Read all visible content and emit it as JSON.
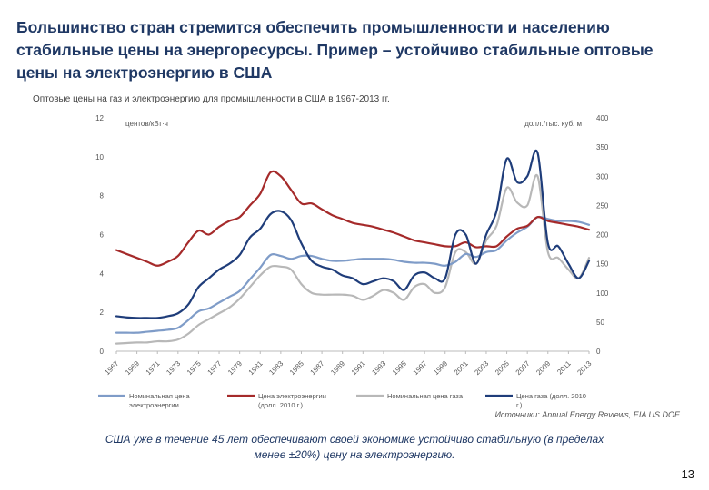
{
  "headline": "Большинство стран стремится обеспечить промышленности и населению стабильные цены на энергоресурсы. Пример – устойчиво стабильные оптовые цены на электроэнергию в США",
  "footer": {
    "source": "Источники: Annual Energy Reviews, EIA US DOE",
    "conclusion": "США уже в течение 45 лет обеспечивают своей экономике устойчиво стабильную (в пределах менее ±20%) цену на электроэнергию.",
    "page_number": "13"
  },
  "colors": {
    "nominal_power": "#7f9cc8",
    "real_power": "#a52a2a",
    "nominal_gas": "#b8b8b8",
    "real_gas": "#1f3d7a"
  },
  "chart_data": {
    "type": "line",
    "title": "Оптовые цены на газ и электроэнергию для промышленности в США в 1967-2013 гг.",
    "ylabel_left": "центов/кВт·ч",
    "ylabel_right": "долл./тыс. куб. м",
    "ylim_left": [
      0,
      12
    ],
    "ylim_right": [
      0,
      400
    ],
    "yticks_left": [
      "0",
      "2",
      "4",
      "6",
      "8",
      "10",
      "12"
    ],
    "yticks_right": [
      "0",
      "50",
      "100",
      "150",
      "200",
      "250",
      "300",
      "350",
      "400"
    ],
    "x": [
      1967,
      1968,
      1969,
      1970,
      1971,
      1972,
      1973,
      1974,
      1975,
      1976,
      1977,
      1978,
      1979,
      1980,
      1981,
      1982,
      1983,
      1984,
      1985,
      1986,
      1987,
      1988,
      1989,
      1990,
      1991,
      1992,
      1993,
      1994,
      1995,
      1996,
      1997,
      1998,
      1999,
      2000,
      2001,
      2002,
      2003,
      2004,
      2005,
      2006,
      2007,
      2008,
      2009,
      2010,
      2011,
      2012,
      2013
    ],
    "xticks": [
      "1967",
      "1969",
      "1971",
      "1973",
      "1975",
      "1977",
      "1979",
      "1981",
      "1983",
      "1985",
      "1987",
      "1989",
      "1991",
      "1993",
      "1995",
      "1997",
      "1999",
      "2001",
      "2003",
      "2005",
      "2007",
      "2009",
      "2011",
      "2013"
    ],
    "series": [
      {
        "name": "Номинальная цена электроэнергии",
        "axis": "left",
        "values": [
          0.95,
          0.95,
          0.95,
          1.0,
          1.05,
          1.1,
          1.2,
          1.6,
          2.05,
          2.2,
          2.5,
          2.8,
          3.1,
          3.7,
          4.3,
          4.95,
          4.9,
          4.75,
          4.9,
          4.9,
          4.75,
          4.65,
          4.65,
          4.7,
          4.75,
          4.75,
          4.75,
          4.7,
          4.6,
          4.55,
          4.55,
          4.5,
          4.4,
          4.6,
          5.0,
          4.85,
          5.1,
          5.2,
          5.7,
          6.1,
          6.4,
          6.9,
          6.8,
          6.7,
          6.7,
          6.65,
          6.5
        ]
      },
      {
        "name": "Цена электроэнергии (долл. 2010 г.)",
        "axis": "left",
        "values": [
          5.2,
          5.0,
          4.8,
          4.6,
          4.4,
          4.6,
          4.9,
          5.6,
          6.2,
          6.0,
          6.4,
          6.7,
          6.9,
          7.5,
          8.1,
          9.2,
          9.0,
          8.3,
          7.6,
          7.6,
          7.3,
          7.0,
          6.8,
          6.6,
          6.5,
          6.4,
          6.25,
          6.1,
          5.9,
          5.7,
          5.6,
          5.5,
          5.4,
          5.4,
          5.6,
          5.35,
          5.4,
          5.4,
          5.9,
          6.3,
          6.45,
          6.9,
          6.7,
          6.6,
          6.5,
          6.4,
          6.25
        ]
      },
      {
        "name": "Номинальная цена газа",
        "axis": "right",
        "values": [
          13,
          14,
          15,
          15,
          17,
          17,
          20,
          30,
          45,
          55,
          65,
          75,
          90,
          110,
          130,
          145,
          145,
          140,
          115,
          100,
          97,
          97,
          97,
          95,
          88,
          95,
          105,
          100,
          88,
          110,
          115,
          100,
          110,
          170,
          170,
          150,
          190,
          215,
          280,
          255,
          250,
          300,
          170,
          160,
          140,
          125,
          160
        ]
      },
      {
        "name": "Цена газа (долл. 2010 г.)",
        "axis": "right",
        "values": [
          60,
          58,
          57,
          57,
          57,
          60,
          65,
          80,
          110,
          125,
          140,
          150,
          165,
          195,
          210,
          235,
          240,
          225,
          185,
          155,
          145,
          140,
          130,
          125,
          115,
          120,
          125,
          120,
          105,
          130,
          135,
          125,
          125,
          200,
          200,
          150,
          200,
          240,
          330,
          290,
          300,
          340,
          185,
          180,
          150,
          125,
          155
        ]
      }
    ],
    "legend": [
      "Номинальная цена электроэнергии",
      "Цена электроэнергии (долл. 2010 г.)",
      "Номинальная цена газа",
      "Цена газа (долл. 2010 г.)"
    ]
  }
}
